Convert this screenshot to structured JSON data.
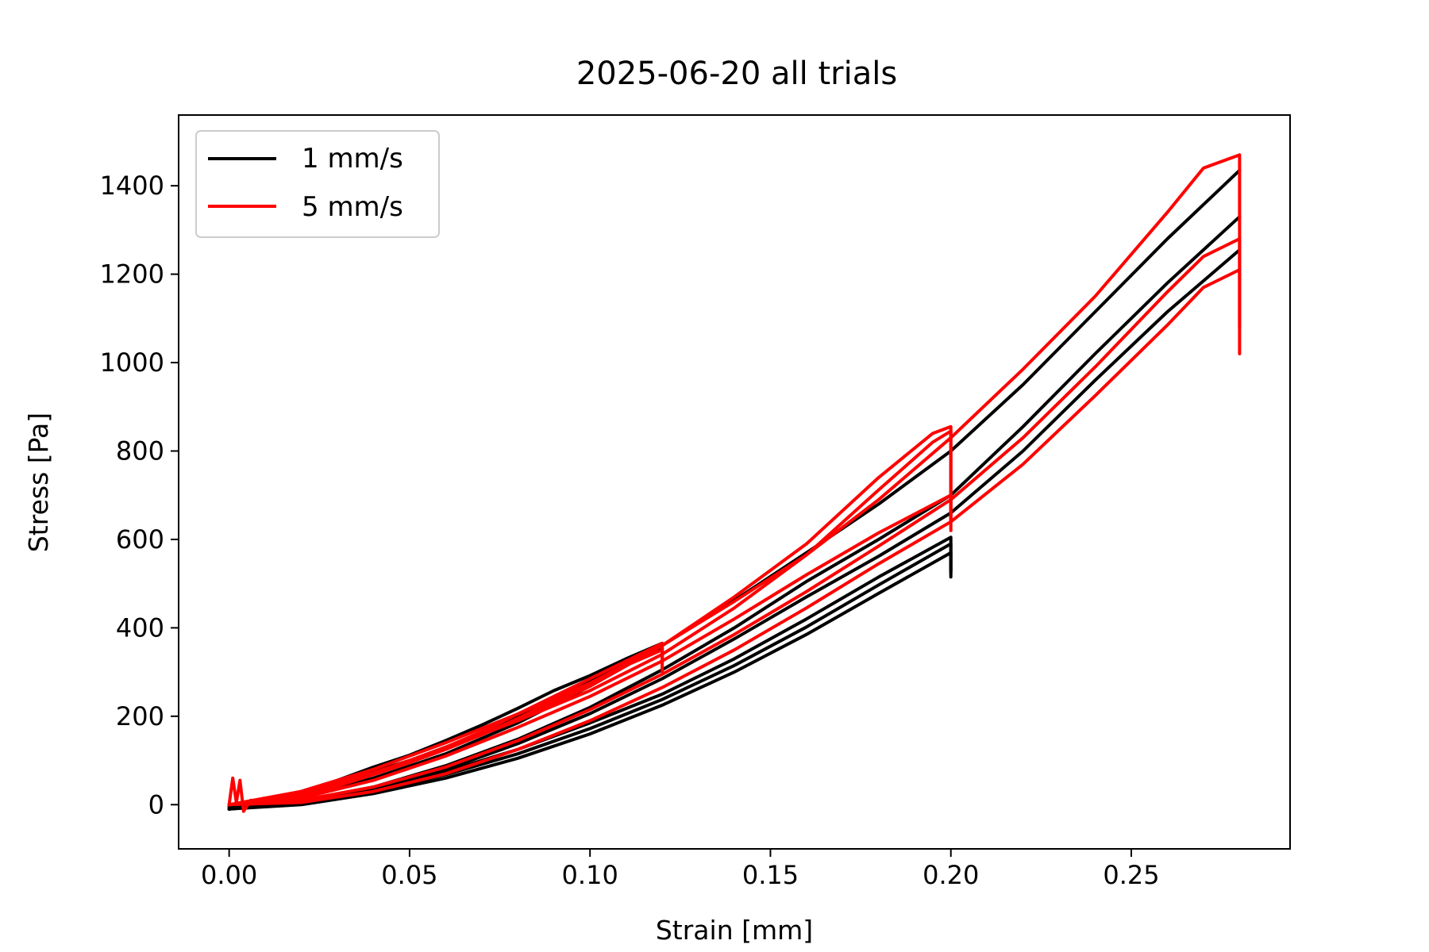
{
  "chart_data": {
    "type": "line",
    "title": "2025-06-20 all trials",
    "xlabel": "Strain [mm]",
    "ylabel": "Stress [Pa]",
    "xlim": [
      -0.014,
      0.294
    ],
    "ylim": [
      -100,
      1560
    ],
    "xticks": [
      0.0,
      0.05,
      0.1,
      0.15,
      0.2,
      0.25
    ],
    "xtick_labels": [
      "0.00",
      "0.05",
      "0.10",
      "0.15",
      "0.20",
      "0.25"
    ],
    "yticks": [
      0,
      200,
      400,
      600,
      800,
      1000,
      1200,
      1400
    ],
    "ytick_labels": [
      "0",
      "200",
      "400",
      "600",
      "800",
      "1000",
      "1200",
      "1400"
    ],
    "grid": false,
    "legend": {
      "placement": "upper-left",
      "entries": [
        {
          "label": "1 mm/s",
          "color": "#000000"
        },
        {
          "label": "5 mm/s",
          "color": "#ff0000"
        }
      ]
    },
    "series": [
      {
        "group": "1 mm/s",
        "color": "#000000",
        "x": [
          0.0,
          0.01,
          0.02,
          0.03,
          0.04,
          0.05,
          0.06,
          0.07,
          0.08,
          0.09,
          0.1,
          0.11,
          0.12
        ],
        "y": [
          -5,
          10,
          30,
          55,
          85,
          112,
          145,
          180,
          218,
          258,
          292,
          330,
          365
        ],
        "drop_to": 330
      },
      {
        "group": "1 mm/s",
        "color": "#000000",
        "x": [
          0.0,
          0.01,
          0.02,
          0.03,
          0.04,
          0.05,
          0.06,
          0.07,
          0.08,
          0.09,
          0.1,
          0.11,
          0.12
        ],
        "y": [
          -5,
          8,
          25,
          48,
          75,
          100,
          130,
          163,
          200,
          240,
          280,
          318,
          355
        ],
        "drop_to": 320
      },
      {
        "group": "1 mm/s",
        "color": "#000000",
        "x": [
          0.0,
          0.02,
          0.04,
          0.06,
          0.08,
          0.1,
          0.12,
          0.14,
          0.16,
          0.18,
          0.2
        ],
        "y": [
          -10,
          5,
          35,
          75,
          125,
          185,
          250,
          330,
          420,
          515,
          605
        ],
        "drop_to": 515
      },
      {
        "group": "1 mm/s",
        "color": "#000000",
        "x": [
          0.0,
          0.02,
          0.04,
          0.06,
          0.08,
          0.1,
          0.12,
          0.14,
          0.16,
          0.18,
          0.2
        ],
        "y": [
          -10,
          3,
          30,
          68,
          115,
          172,
          238,
          315,
          402,
          497,
          590
        ],
        "drop_to": 525
      },
      {
        "group": "1 mm/s",
        "color": "#000000",
        "x": [
          0.0,
          0.02,
          0.04,
          0.06,
          0.08,
          0.1,
          0.12,
          0.14,
          0.16,
          0.18,
          0.2
        ],
        "y": [
          -10,
          0,
          25,
          60,
          105,
          160,
          225,
          300,
          385,
          478,
          570
        ],
        "drop_to": 530
      },
      {
        "group": "1 mm/s",
        "color": "#000000",
        "x": [
          0.0,
          0.02,
          0.04,
          0.06,
          0.08,
          0.1,
          0.12,
          0.14,
          0.16,
          0.18,
          0.2,
          0.22,
          0.24,
          0.26,
          0.28
        ],
        "y": [
          -10,
          15,
          60,
          115,
          185,
          268,
          360,
          462,
          570,
          680,
          800,
          950,
          1115,
          1280,
          1435
        ],
        "drop_to": null
      },
      {
        "group": "1 mm/s",
        "color": "#000000",
        "x": [
          0.0,
          0.02,
          0.04,
          0.06,
          0.08,
          0.1,
          0.12,
          0.14,
          0.16,
          0.18,
          0.2,
          0.22,
          0.24,
          0.26,
          0.28
        ],
        "y": [
          -10,
          8,
          40,
          88,
          148,
          220,
          305,
          400,
          505,
          600,
          700,
          855,
          1020,
          1180,
          1330
        ],
        "drop_to": null
      },
      {
        "group": "1 mm/s",
        "color": "#000000",
        "x": [
          0.0,
          0.02,
          0.04,
          0.06,
          0.08,
          0.1,
          0.12,
          0.14,
          0.16,
          0.18,
          0.2,
          0.22,
          0.24,
          0.26,
          0.28
        ],
        "y": [
          -10,
          5,
          35,
          80,
          138,
          206,
          285,
          375,
          470,
          562,
          660,
          800,
          960,
          1115,
          1255
        ],
        "drop_to": null
      },
      {
        "group": "5 mm/s",
        "color": "#ff0000",
        "x": [
          0.0,
          0.001,
          0.002,
          0.003,
          0.004,
          0.006,
          0.01,
          0.02,
          0.03,
          0.04,
          0.05,
          0.06,
          0.07,
          0.08,
          0.09,
          0.1,
          0.11,
          0.12
        ],
        "y": [
          0,
          60,
          5,
          55,
          -15,
          10,
          5,
          25,
          45,
          70,
          100,
          130,
          165,
          205,
          245,
          285,
          325,
          365
        ],
        "drop_to": 300
      },
      {
        "group": "5 mm/s",
        "color": "#ff0000",
        "x": [
          0.0,
          0.01,
          0.02,
          0.03,
          0.04,
          0.05,
          0.06,
          0.07,
          0.08,
          0.09,
          0.1,
          0.11,
          0.12
        ],
        "y": [
          0,
          5,
          20,
          42,
          68,
          95,
          125,
          158,
          195,
          235,
          275,
          315,
          350
        ],
        "drop_to": 310
      },
      {
        "group": "5 mm/s",
        "color": "#ff0000",
        "x": [
          0.0,
          0.02,
          0.04,
          0.06,
          0.08,
          0.1,
          0.12,
          0.14,
          0.16,
          0.18,
          0.195,
          0.2
        ],
        "y": [
          0,
          30,
          80,
          140,
          205,
          275,
          360,
          470,
          590,
          740,
          840,
          855
        ],
        "drop_to": 620
      },
      {
        "group": "5 mm/s",
        "color": "#ff0000",
        "x": [
          0.0,
          0.02,
          0.04,
          0.06,
          0.08,
          0.1,
          0.12,
          0.14,
          0.16,
          0.18,
          0.195,
          0.2
        ],
        "y": [
          0,
          25,
          72,
          128,
          190,
          258,
          340,
          445,
          565,
          712,
          820,
          845
        ],
        "drop_to": 640
      },
      {
        "group": "5 mm/s",
        "color": "#ff0000",
        "x": [
          0.0,
          0.02,
          0.04,
          0.06,
          0.08,
          0.1,
          0.12,
          0.14,
          0.16,
          0.18,
          0.2
        ],
        "y": [
          0,
          15,
          55,
          110,
          175,
          245,
          325,
          420,
          520,
          615,
          700
        ],
        "drop_to": 640
      },
      {
        "group": "5 mm/s",
        "color": "#ff0000",
        "x": [
          0.0,
          0.02,
          0.04,
          0.06,
          0.08,
          0.1,
          0.12,
          0.14,
          0.16,
          0.18,
          0.2,
          0.22,
          0.24,
          0.26,
          0.27,
          0.28
        ],
        "y": [
          0,
          25,
          72,
          128,
          192,
          268,
          360,
          460,
          565,
          690,
          830,
          985,
          1150,
          1340,
          1440,
          1470
        ],
        "drop_to": 1190
      },
      {
        "group": "5 mm/s",
        "color": "#ff0000",
        "x": [
          0.0,
          0.02,
          0.04,
          0.06,
          0.08,
          0.1,
          0.12,
          0.14,
          0.16,
          0.18,
          0.2,
          0.22,
          0.24,
          0.26,
          0.27,
          0.28
        ],
        "y": [
          0,
          10,
          40,
          85,
          145,
          215,
          295,
          385,
          482,
          585,
          690,
          830,
          990,
          1160,
          1240,
          1280
        ],
        "drop_to": 1080
      },
      {
        "group": "5 mm/s",
        "color": "#ff0000",
        "x": [
          0.0,
          0.02,
          0.04,
          0.06,
          0.08,
          0.1,
          0.12,
          0.14,
          0.16,
          0.18,
          0.2,
          0.22,
          0.24,
          0.26,
          0.27,
          0.28
        ],
        "y": [
          0,
          5,
          30,
          70,
          125,
          190,
          265,
          350,
          445,
          545,
          640,
          770,
          925,
          1085,
          1170,
          1210
        ],
        "drop_to": 1020
      }
    ]
  }
}
